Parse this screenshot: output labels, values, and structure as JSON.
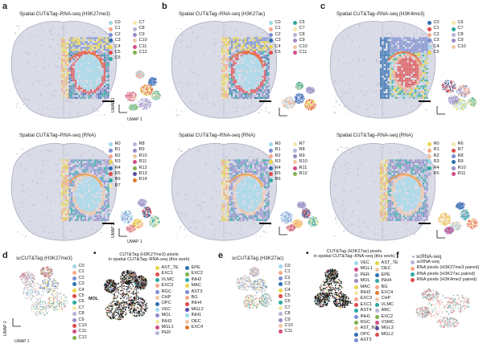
{
  "panels": {
    "a": {
      "label": "a",
      "title_top": "Spatial CUT&Tag–RNA-seq (H3K27me3)",
      "title_bottom": "Spatial CUT&Tag–RNA-seq (RNA)"
    },
    "b": {
      "label": "b",
      "title_top": "Spatial CUT&Tag–RNA-seq (H3K27ac)",
      "title_bottom": "Spatial CUT&Tag–RNA-seq (RNA)"
    },
    "c": {
      "label": "c",
      "title_top": "Spatial CUT&Tag–RNA-seq (H3K4me3)",
      "title_bottom": "Spatial CUT&Tag–RNA-seq (RNA)"
    },
    "d": {
      "label": "d",
      "title": "scCUT&Tag (H3K27me3)"
    },
    "d2": {
      "label": "•",
      "title_line1": "CUT&Tag (H3K27me3) pixels",
      "title_line2": "in spatial CUT&Tag–RNA-seq (this work)",
      "annot": "MOL"
    },
    "e": {
      "label": "e",
      "title": "scCUT&Tag (H3K27ac)"
    },
    "e2": {
      "label": "•",
      "title_line1": "CUT&Tag (H3K27ac) pixels",
      "title_line2": "in spatial CUT&Tag–RNA-seq (this work)",
      "annot": "MOL"
    },
    "f": {
      "label": "f",
      "title": "scRNA-seq"
    }
  },
  "axes": {
    "umap1": "UMAP 1",
    "umap2": "UMAP 2"
  },
  "colors": {
    "C0": "#9fd9ea",
    "C1": "#f6a98a",
    "C2": "#7b8ed0",
    "C3": "#2f6fb0",
    "C4": "#e8d54a",
    "C5": "#e14b4b",
    "C6": "#2ea9a3",
    "C7": "#f5e7a7",
    "C8": "#b7b5d6",
    "C9": "#9a89c4",
    "C10": "#f0c6a6",
    "C11": "#d14e86",
    "C12": "#7fb14a",
    "R13": "#5b4aa4",
    "R14": "#e27a2d"
  },
  "legends": {
    "a_top": [
      [
        "C0",
        "C0"
      ],
      [
        "C1",
        "C1"
      ],
      [
        "C2",
        "C2"
      ],
      [
        "C3",
        "C3"
      ],
      [
        "C4",
        "C4"
      ],
      [
        "C5",
        "C5"
      ],
      [
        "C6",
        "C6"
      ],
      [
        "C7",
        "C7"
      ],
      [
        "C8",
        "C8"
      ],
      [
        "C9",
        "C9"
      ],
      [
        "C10",
        "C10"
      ],
      [
        "C11",
        "C11"
      ],
      [
        "C12",
        "C12"
      ]
    ],
    "a_bottom": [
      [
        "R0",
        "C0"
      ],
      [
        "R1",
        "C2"
      ],
      [
        "R2",
        "C1"
      ],
      [
        "R3",
        "C4"
      ],
      [
        "R4",
        "C3"
      ],
      [
        "R5",
        "C5"
      ],
      [
        "R6",
        "C6"
      ],
      [
        "R7",
        "C7"
      ],
      [
        "R8",
        "C8"
      ],
      [
        "R9",
        "C9"
      ],
      [
        "R10",
        "C10"
      ],
      [
        "R11",
        "C11"
      ],
      [
        "R12",
        "C12"
      ],
      [
        "R13",
        "R13"
      ],
      [
        "R14",
        "R14"
      ]
    ],
    "b_top": [
      [
        "C0",
        "C0"
      ],
      [
        "C1",
        "C1"
      ],
      [
        "C2",
        "C2"
      ],
      [
        "C3",
        "C3"
      ],
      [
        "C4",
        "C4"
      ],
      [
        "C5",
        "C5"
      ],
      [
        "C6",
        "C6"
      ],
      [
        "C7",
        "C7"
      ],
      [
        "C8",
        "C8"
      ],
      [
        "C9",
        "C9"
      ],
      [
        "C10",
        "C10"
      ],
      [
        "C11",
        "C11"
      ]
    ],
    "b_bottom": [
      [
        "R0",
        "C0"
      ],
      [
        "R1",
        "C2"
      ],
      [
        "R2",
        "C1"
      ],
      [
        "R3",
        "C4"
      ],
      [
        "R4",
        "C3"
      ],
      [
        "R5",
        "C5"
      ],
      [
        "R6",
        "C6"
      ],
      [
        "R7",
        "C7"
      ],
      [
        "R8",
        "C8"
      ],
      [
        "R9",
        "C9"
      ],
      [
        "R10",
        "C10"
      ],
      [
        "R11",
        "C11"
      ],
      [
        "R12",
        "C12"
      ]
    ],
    "c_top": [
      [
        "C0",
        "C3"
      ],
      [
        "C1",
        "C5"
      ],
      [
        "C2",
        "C1"
      ],
      [
        "C3",
        "C2"
      ],
      [
        "C4",
        "C0"
      ],
      [
        "C5",
        "C4"
      ],
      [
        "C6",
        "C7"
      ],
      [
        "C7",
        "C6"
      ],
      [
        "C8",
        "C8"
      ],
      [
        "C9",
        "C9"
      ],
      [
        "C10",
        "C10"
      ]
    ],
    "c_bottom": [
      [
        "R0",
        "C4"
      ],
      [
        "R1",
        "C1"
      ],
      [
        "R2",
        "C10"
      ],
      [
        "R3",
        "C0"
      ],
      [
        "R4",
        "C6"
      ],
      [
        "R5",
        "C8"
      ],
      [
        "R6",
        "C7"
      ],
      [
        "R7",
        "C5"
      ],
      [
        "R8",
        "C2"
      ],
      [
        "R9",
        "C3"
      ],
      [
        "R10",
        "C9"
      ],
      [
        "R11",
        "C11"
      ]
    ],
    "d": [
      [
        "C0",
        "C0"
      ],
      [
        "C1",
        "C1"
      ],
      [
        "C2",
        "C2"
      ],
      [
        "C3",
        "C3"
      ],
      [
        "C4",
        "C4"
      ],
      [
        "C5",
        "C5"
      ],
      [
        "C6",
        "C6"
      ],
      [
        "C7",
        "C7"
      ],
      [
        "C8",
        "C8"
      ],
      [
        "C9",
        "C9"
      ],
      [
        "C10",
        "C5"
      ],
      [
        "C11",
        "C11"
      ],
      [
        "C12",
        "C12"
      ]
    ],
    "d2": [
      [
        "AST_TE",
        "C4"
      ],
      [
        "EXC1",
        "C5"
      ],
      [
        "VLMC",
        "C6"
      ],
      [
        "EXC3",
        "C1"
      ],
      [
        "RGC",
        "C2"
      ],
      [
        "CHP",
        "C10"
      ],
      [
        "OPC",
        "C3"
      ],
      [
        "VEC",
        "C0"
      ],
      [
        "MOL",
        "C9"
      ],
      [
        "INH3",
        "C7"
      ],
      [
        "MGL1",
        "C11"
      ],
      [
        "PER",
        "C8"
      ],
      [
        "EPE",
        "C3"
      ],
      [
        "EXC2",
        "C12"
      ],
      [
        "INH2",
        "C6"
      ],
      [
        "MAC",
        "C4"
      ],
      [
        "AST3",
        "C2"
      ],
      [
        "BG",
        "C1"
      ],
      [
        "INH4",
        "C5"
      ],
      [
        "MGL2",
        "R13"
      ],
      [
        "INH1",
        "C0"
      ],
      [
        "OEC",
        "C10"
      ],
      [
        "EXC4",
        "R14"
      ]
    ],
    "e": [
      [
        "C0",
        "C0"
      ],
      [
        "C1",
        "C1"
      ],
      [
        "C2",
        "C2"
      ],
      [
        "C3",
        "C3"
      ],
      [
        "C4",
        "C4"
      ],
      [
        "C5",
        "C5"
      ],
      [
        "C6",
        "C6"
      ],
      [
        "C7",
        "C7"
      ],
      [
        "C8",
        "C8"
      ],
      [
        "C9",
        "C9"
      ],
      [
        "C10",
        "C10"
      ],
      [
        "C11",
        "C11"
      ]
    ],
    "e2": [
      [
        "VEC",
        "C0"
      ],
      [
        "MGL1",
        "C11"
      ],
      [
        "PER",
        "C8"
      ],
      [
        "MOL",
        "C9"
      ],
      [
        "MAC",
        "C4"
      ],
      [
        "INH3",
        "C7"
      ],
      [
        "EXC3",
        "C1"
      ],
      [
        "EXC1",
        "C5"
      ],
      [
        "AST4",
        "C6"
      ],
      [
        "INH1",
        "C2"
      ],
      [
        "RGC",
        "C12"
      ],
      [
        "AST_NT",
        "C10"
      ],
      [
        "OPC",
        "C3"
      ],
      [
        "AST3",
        "C2"
      ],
      [
        "AST_TE",
        "C4"
      ],
      [
        "OEC",
        "C10"
      ],
      [
        "EPE",
        "C3"
      ],
      [
        "INH4",
        "C6"
      ],
      [
        "BG",
        "C1"
      ],
      [
        "EXC4",
        "R14"
      ],
      [
        "CHP",
        "C10"
      ],
      [
        "VLMC",
        "C6"
      ],
      [
        "ABC",
        "C8"
      ],
      [
        "EXC2",
        "C12"
      ],
      [
        "VSMC",
        "C11"
      ],
      [
        "MGL3",
        "R13"
      ],
      [
        "MGL2",
        "C5"
      ]
    ],
    "f": [
      [
        "scRNA-seq",
        "C8"
      ],
      [
        "RNA pixels (H3K27me3 paired)",
        "C1"
      ],
      [
        "RNA pixels (H3K27ac paired)",
        "C6"
      ],
      [
        "RNA pixels (H3K4me3 paired)",
        "C5"
      ]
    ]
  }
}
